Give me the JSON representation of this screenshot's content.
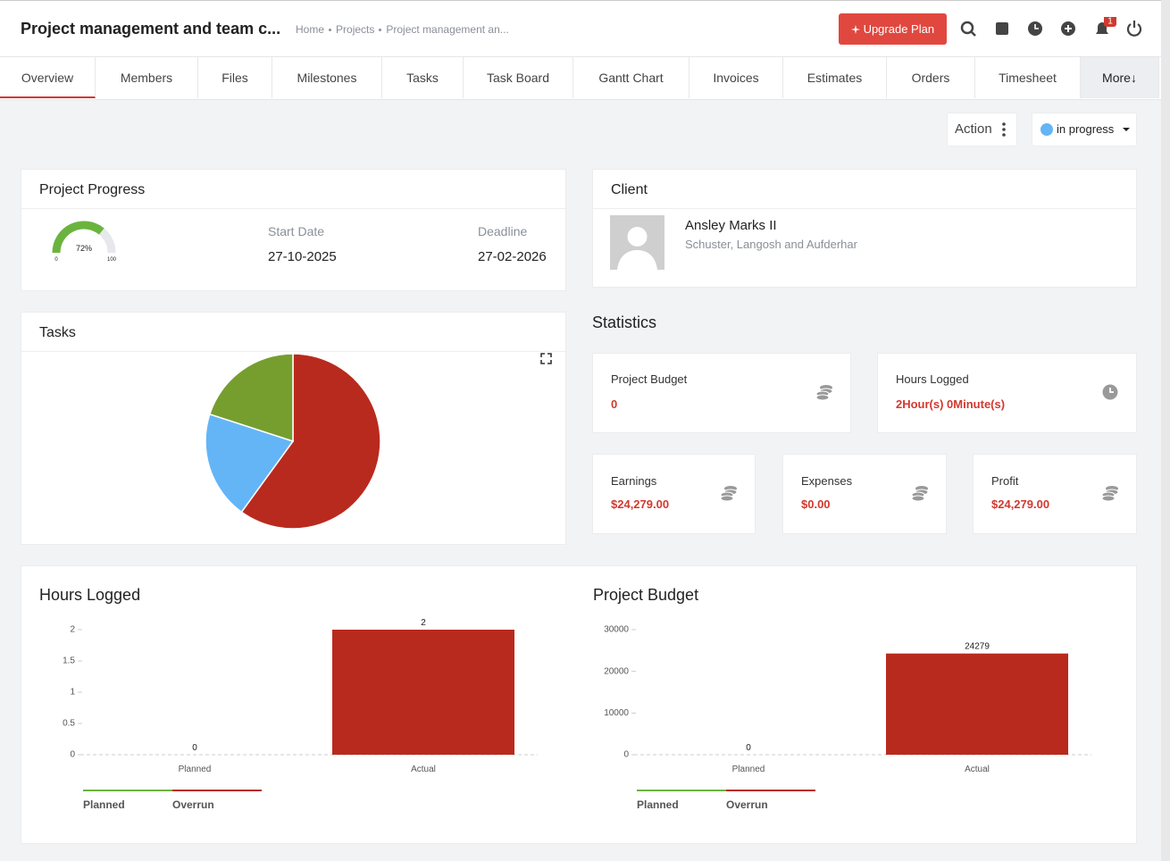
{
  "header": {
    "title": "Project management and team c...",
    "breadcrumb": [
      "Home",
      "Projects",
      "Project management an..."
    ],
    "upgrade": "Upgrade Plan",
    "notifications": "1"
  },
  "tabs": [
    "Overview",
    "Members",
    "Files",
    "Milestones",
    "Tasks",
    "Task Board",
    "Gantt Chart",
    "Invoices",
    "Estimates",
    "Orders",
    "Timesheet",
    "More↓"
  ],
  "toolbar": {
    "action": "Action",
    "status": "in progress"
  },
  "progress": {
    "title": "Project Progress",
    "start_label": "Start Date",
    "start": "27-10-2025",
    "deadline_label": "Deadline",
    "deadline": "27-02-2026"
  },
  "client": {
    "title": "Client",
    "name": "Ansley Marks II",
    "company": "Schuster, Langosh and Aufderhar"
  },
  "statistics": {
    "title": "Statistics",
    "cards": [
      {
        "label": "Project Budget",
        "value": "0"
      },
      {
        "label": "Hours Logged",
        "value": "2Hour(s) 0Minute(s)"
      },
      {
        "label": "Earnings",
        "value": "$24,279.00"
      },
      {
        "label": "Expenses",
        "value": "$0.00"
      },
      {
        "label": "Profit",
        "value": "$24,279.00"
      }
    ]
  },
  "chart_data": [
    {
      "type": "gauge",
      "values": [
        72
      ],
      "value_labels": [
        "72%"
      ],
      "ylim": [
        0,
        100
      ],
      "yticks": [
        0,
        100
      ],
      "color": "#6ab43e"
    },
    {
      "type": "pie",
      "title": "Tasks",
      "series": [
        {
          "color": "#b92a1e",
          "values": [
            60
          ]
        },
        {
          "color": "#64b5f6",
          "values": [
            20
          ]
        },
        {
          "color": "#769e2f",
          "values": [
            20
          ]
        }
      ]
    },
    {
      "type": "bar",
      "title": "Hours Logged",
      "categories": [
        "Planned",
        "Actual"
      ],
      "values": [
        0,
        2
      ],
      "color": "#b92a1e",
      "ylim": [
        0,
        2
      ],
      "yticks": [
        0,
        0.5,
        1,
        1.5,
        2
      ],
      "grid": false,
      "legend": [
        {
          "name": "Planned",
          "color": "#6ab43e"
        },
        {
          "name": "Overrun",
          "color": "#b92a1e"
        }
      ]
    },
    {
      "type": "bar",
      "title": "Project Budget",
      "categories": [
        "Planned",
        "Actual"
      ],
      "values": [
        0,
        24279
      ],
      "color": "#b92a1e",
      "ylim": [
        0,
        30000
      ],
      "yticks": [
        0,
        10000,
        20000,
        30000
      ],
      "grid": false,
      "legend": [
        {
          "name": "Planned",
          "color": "#6ab43e"
        },
        {
          "name": "Overrun",
          "color": "#b92a1e"
        }
      ]
    }
  ]
}
